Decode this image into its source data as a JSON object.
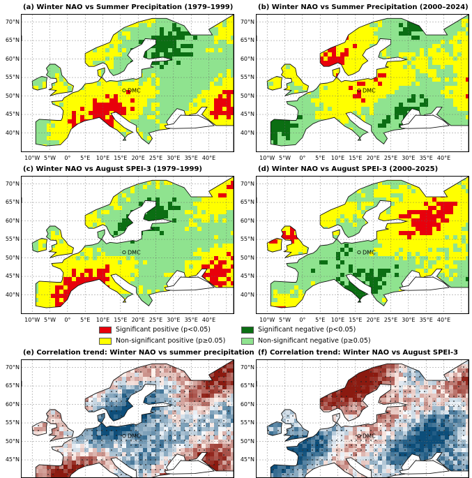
{
  "panels": [
    {
      "id": "a",
      "title": "(a) Winter NAO vs Summer Precipitation (1979–1999)",
      "kind": "categorical",
      "dmc": "DMC"
    },
    {
      "id": "b",
      "title": "(b) Winter NAO vs Summer Precipitation (2000–2024)",
      "kind": "categorical",
      "dmc": "DMC"
    },
    {
      "id": "c",
      "title": "(c) Winter NAO vs August SPEI-3 (1979–1999)",
      "kind": "categorical",
      "dmc": "DMC"
    },
    {
      "id": "d",
      "title": "(d) Winter NAO vs August SPEI-3 (2000–2025)",
      "kind": "categorical",
      "dmc": "DMC"
    },
    {
      "id": "e",
      "title": "(e) Correlation trend: Winter NAO vs summer precipitation",
      "kind": "trend",
      "dmc": "DMC"
    },
    {
      "id": "f",
      "title": "(f) Correlation trend: Winter NAO vs August SPEI-3",
      "kind": "trend",
      "dmc": "DMC"
    }
  ],
  "lat_labels_top": [
    "70°N",
    "65°N",
    "60°N",
    "55°N",
    "50°N",
    "45°N",
    "40°N"
  ],
  "lat_labels_bottom": [
    "70°N",
    "65°N",
    "60°N",
    "55°N",
    "50°N",
    "45°N"
  ],
  "lon_labels": [
    "10°W",
    "5°W",
    "0°",
    "5°E",
    "10°E",
    "15°E",
    "20°E",
    "25°E",
    "30°E",
    "35°E",
    "40°E"
  ],
  "legend": [
    {
      "label": "Significant positive (p<0.05)",
      "color": "#e8000b"
    },
    {
      "label": "Significant negative (p<0.05)",
      "color": "#0b6e13"
    },
    {
      "label": "Non-significant positive (p≥0.05)",
      "color": "#ffff00"
    },
    {
      "label": "Non-significant negative (p≥0.05)",
      "color": "#8fe38f"
    }
  ],
  "colors": {
    "sig_pos": "#e8000b",
    "sig_neg": "#0b6e13",
    "nonsig_pos": "#ffff00",
    "nonsig_neg": "#8fe38f",
    "water": "#ffffff",
    "trend_pos": "#8b1a10",
    "trend_neg": "#0d4e7a"
  }
}
